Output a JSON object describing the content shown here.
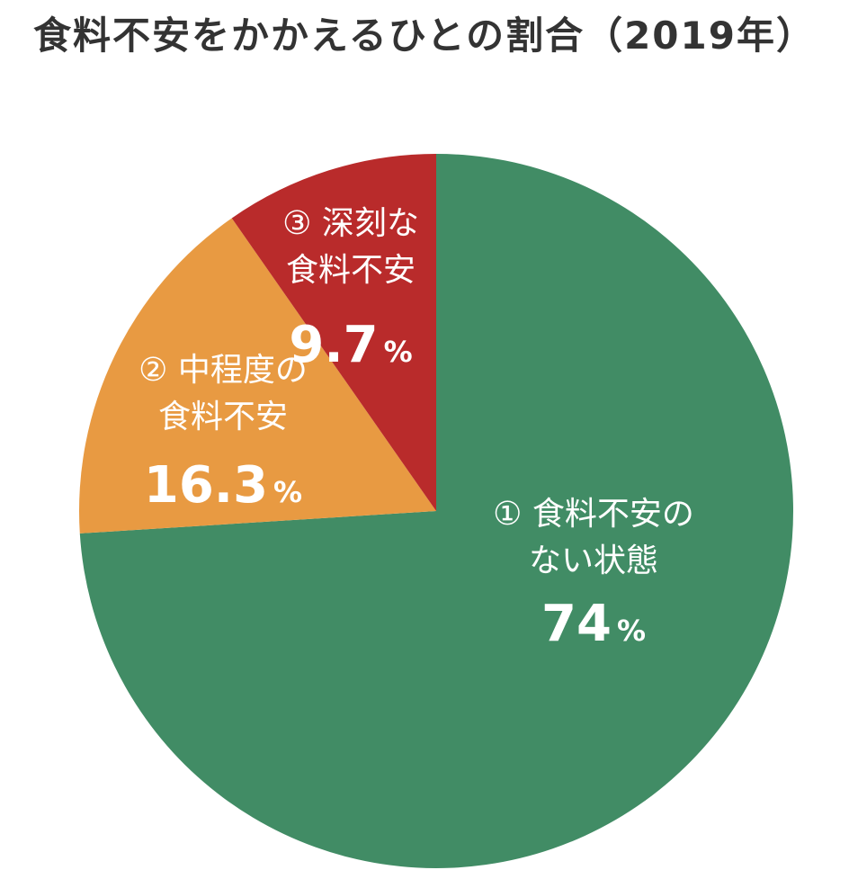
{
  "chart_data": {
    "type": "pie",
    "title": "食料不安をかかえるひとの割合（2019年）",
    "unit": "%",
    "slices": [
      {
        "id": "none",
        "label_lines": [
          "① 食料不安の",
          "ない状態"
        ],
        "value": 74,
        "value_text": "74",
        "color": "#418c65"
      },
      {
        "id": "moderate",
        "label_lines": [
          "② 中程度の",
          "食料不安"
        ],
        "value": 16.3,
        "value_text": "16.3",
        "color": "#e89a42"
      },
      {
        "id": "severe",
        "label_lines": [
          "③ 深刻な",
          "食料不安"
        ],
        "value": 9.7,
        "value_text": "9.7",
        "color": "#b92b2b"
      }
    ]
  }
}
